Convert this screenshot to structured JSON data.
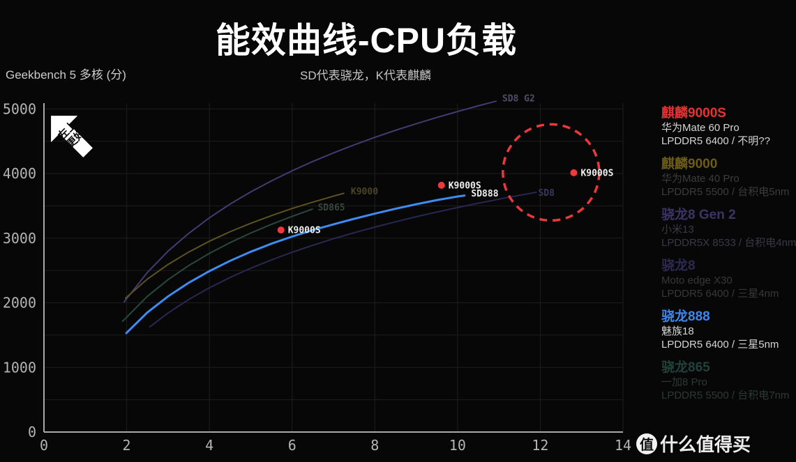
{
  "chart_data": {
    "type": "line",
    "title": "能效曲线-CPU负载",
    "note": "SD代表骁龙，K代表麒麟",
    "ylabel": "Geekbench 5 多核 (分)",
    "xlabel": "",
    "xlim": [
      0,
      14
    ],
    "ylim": [
      0,
      5090
    ],
    "xticks": [
      0,
      2,
      4,
      6,
      8,
      10,
      12,
      14
    ],
    "yticks": [
      0,
      1000,
      2000,
      3000,
      4000,
      5000
    ],
    "grid": {
      "x_step": 2,
      "y_step": 500,
      "color": "#1e1e1e"
    },
    "axis_color": "#a9a9a9",
    "tick_color": "#b5b5b5",
    "series": [
      {
        "name": "SD8 G2",
        "color": "#453a72",
        "label_color": "#514b6b",
        "width": 2,
        "label_pos": [
          11.08,
          5160
        ],
        "points": [
          [
            1.94,
            2015
          ],
          [
            2.5,
            2470
          ],
          [
            3,
            2800
          ],
          [
            3.5,
            3075
          ],
          [
            4,
            3315
          ],
          [
            4.5,
            3527
          ],
          [
            5,
            3716
          ],
          [
            5.5,
            3887
          ],
          [
            6,
            4043
          ],
          [
            6.5,
            4187
          ],
          [
            7,
            4320
          ],
          [
            7.5,
            4444
          ],
          [
            8,
            4560
          ],
          [
            8.5,
            4669
          ],
          [
            9,
            4771
          ],
          [
            9.5,
            4868
          ],
          [
            10,
            4960
          ],
          [
            10.5,
            5048
          ],
          [
            10.93,
            5120
          ]
        ]
      },
      {
        "name": "K9000",
        "color": "#5d5320",
        "label_color": "#4a4428",
        "width": 2,
        "label_pos": [
          7.42,
          3720
        ],
        "points": [
          [
            1.97,
            2070
          ],
          [
            2.5,
            2367
          ],
          [
            3,
            2594
          ],
          [
            3.5,
            2786
          ],
          [
            4,
            2953
          ],
          [
            4.5,
            3100
          ],
          [
            5,
            3231
          ],
          [
            5.5,
            3350
          ],
          [
            6,
            3459
          ],
          [
            6.5,
            3558
          ],
          [
            7,
            3651
          ],
          [
            7.25,
            3695
          ]
        ]
      },
      {
        "name": "SD865",
        "color": "#28483f",
        "label_color": "#37473f",
        "width": 2,
        "label_pos": [
          6.62,
          3475
        ],
        "points": [
          [
            1.9,
            1712
          ],
          [
            2.5,
            2100
          ],
          [
            3,
            2358
          ],
          [
            3.5,
            2576
          ],
          [
            4,
            2765
          ],
          [
            4.5,
            2931
          ],
          [
            5,
            3080
          ],
          [
            5.5,
            3215
          ],
          [
            6,
            3338
          ],
          [
            6.49,
            3450
          ]
        ]
      },
      {
        "name": "SD8",
        "color": "#2b2754",
        "label_color": "#37375b",
        "width": 2,
        "label_pos": [
          11.95,
          3700
        ],
        "points": [
          [
            2.56,
            1627
          ],
          [
            3,
            1842
          ],
          [
            3.5,
            2051
          ],
          [
            4,
            2232
          ],
          [
            4.5,
            2392
          ],
          [
            5,
            2535
          ],
          [
            5.5,
            2664
          ],
          [
            6,
            2782
          ],
          [
            6.5,
            2890
          ],
          [
            7,
            2991
          ],
          [
            7.5,
            3084
          ],
          [
            8,
            3172
          ],
          [
            8.5,
            3254
          ],
          [
            9,
            3332
          ],
          [
            9.5,
            3405
          ],
          [
            10,
            3475
          ],
          [
            10.5,
            3541
          ],
          [
            11,
            3604
          ],
          [
            11.5,
            3664
          ],
          [
            11.9,
            3710
          ]
        ]
      },
      {
        "name": "SD888",
        "color": "#3e8cf2",
        "label_color": "#ececec",
        "width": 3,
        "label_pos": [
          10.33,
          3690
        ],
        "points": [
          [
            1.99,
            1530
          ],
          [
            2.5,
            1850
          ],
          [
            3,
            2100
          ],
          [
            3.5,
            2310
          ],
          [
            4,
            2490
          ],
          [
            4.5,
            2650
          ],
          [
            5,
            2790
          ],
          [
            5.5,
            2915
          ],
          [
            6,
            3025
          ],
          [
            6.5,
            3125
          ],
          [
            7,
            3215
          ],
          [
            7.5,
            3300
          ],
          [
            8,
            3380
          ],
          [
            8.5,
            3455
          ],
          [
            9,
            3525
          ],
          [
            9.5,
            3590
          ],
          [
            10,
            3645
          ],
          [
            10.17,
            3660
          ]
        ]
      }
    ],
    "scatter": {
      "name": "K9000S",
      "color": "#ee3a3c",
      "label_color": "#efefef",
      "points": [
        {
          "x": 5.73,
          "y": 3126,
          "label": "K9000S"
        },
        {
          "x": 9.61,
          "y": 3819,
          "label": "K9000S"
        },
        {
          "x": 12.81,
          "y": 4013,
          "label": "K9000S"
        }
      ]
    },
    "annotation_circle": {
      "center": [
        12.26,
        4018
      ],
      "radius_px": 69,
      "color": "#e8393d"
    }
  },
  "badge": {
    "line1": "左上",
    "line2": "更好"
  },
  "legend": {
    "items": [
      {
        "title": "麒麟9000S",
        "title_color": "#e23432",
        "device": "华为Mate 60 Pro",
        "memory": "LPDDR5 6400 / 不明??",
        "text_color": "#d5d5d5"
      },
      {
        "title": "麒麟9000",
        "title_color": "#6b5c17",
        "device": "华为Mate 40 Pro",
        "memory": "LPDDR5 5500 / 台积电5nm",
        "text_color": "#3c3c3c"
      },
      {
        "title": "骁龙8 Gen 2",
        "title_color": "#3d3366",
        "device": "小米13",
        "memory": "LPDDR5X 8533 / 台积电4nm",
        "text_color": "#3a3a46"
      },
      {
        "title": "骁龙8",
        "title_color": "#2d2950",
        "device": "Moto edge X30",
        "memory": "LPDDR5 6400 / 三星4nm",
        "text_color": "#383838"
      },
      {
        "title": "骁龙888",
        "title_color": "#3e86f0",
        "device": "魅族18",
        "memory": "LPDDR5 6400 / 三星5nm",
        "text_color": "#d5d5d5"
      },
      {
        "title": "骁龙865",
        "title_color": "#21423a",
        "device": "一加8 Pro",
        "memory": "LPDDR5 5500 / 台积电7nm",
        "text_color": "#2c3a36"
      }
    ]
  },
  "watermark": {
    "logo_char": "值",
    "text": "什么值得买"
  }
}
